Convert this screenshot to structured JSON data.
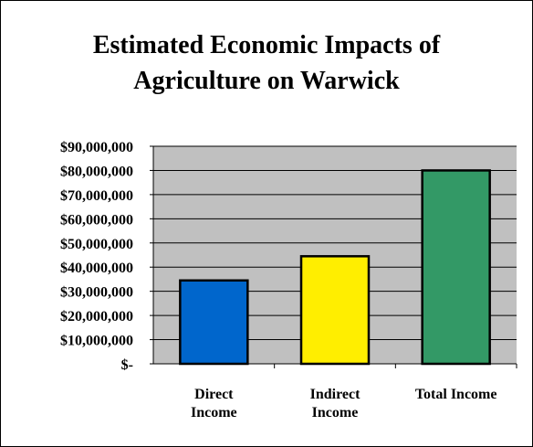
{
  "chart_data": {
    "type": "bar",
    "title": "Estimated Economic Impacts of Agriculture on Warwick",
    "title_lines": [
      "Estimated Economic Impacts of",
      "Agriculture on Warwick"
    ],
    "categories": [
      "Direct Income",
      "Indirect Income",
      "Total Income"
    ],
    "category_lines": [
      [
        "Direct",
        "Income"
      ],
      [
        "Indirect",
        "Income"
      ],
      [
        "Total Income"
      ]
    ],
    "values": [
      34500000,
      44500000,
      80000000
    ],
    "bar_colors": [
      "#0066cc",
      "#ffee00",
      "#339966"
    ],
    "plot_background": "#c0c0c0",
    "ylim": [
      0,
      90000000
    ],
    "y_ticks": [
      0,
      10000000,
      20000000,
      30000000,
      40000000,
      50000000,
      60000000,
      70000000,
      80000000,
      90000000
    ],
    "y_tick_labels": [
      "$-",
      "$10,000,000",
      "$20,000,000",
      "$30,000,000",
      "$40,000,000",
      "$50,000,000",
      "$60,000,000",
      "$70,000,000",
      "$80,000,000",
      "$90,000,000"
    ],
    "grid": true,
    "legend": false,
    "xlabel": "",
    "ylabel": ""
  }
}
